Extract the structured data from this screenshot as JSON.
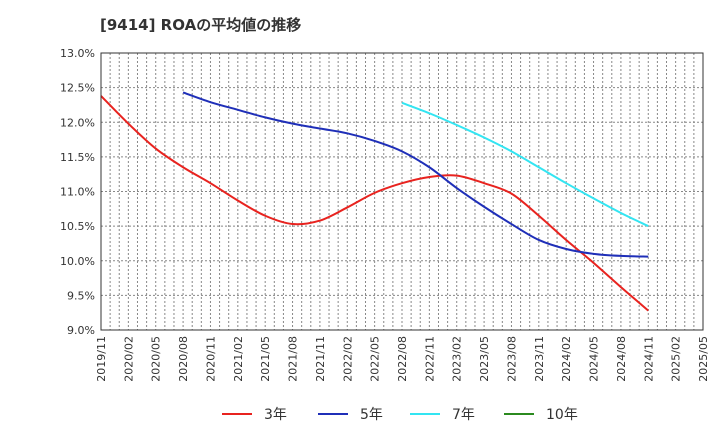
{
  "chart_data": {
    "type": "line",
    "title": "[9414]  ROAの平均値の推移",
    "xlabel": "",
    "ylabel": "",
    "ylim": [
      9.0,
      13.0
    ],
    "yticks": [
      "9.0%",
      "9.5%",
      "10.0%",
      "10.5%",
      "11.0%",
      "11.5%",
      "12.0%",
      "12.5%",
      "13.0%"
    ],
    "categories": [
      "2019/11",
      "2020/02",
      "2020/05",
      "2020/08",
      "2020/11",
      "2021/02",
      "2021/05",
      "2021/08",
      "2021/11",
      "2022/02",
      "2022/05",
      "2022/08",
      "2022/11",
      "2023/02",
      "2023/05",
      "2023/08",
      "2023/11",
      "2024/02",
      "2024/05",
      "2024/08",
      "2024/11",
      "2025/02",
      "2025/05"
    ],
    "grid": true,
    "legend_position": "bottom",
    "series": [
      {
        "name": "3年",
        "color": "#e8231f",
        "values": [
          12.38,
          11.98,
          11.62,
          11.35,
          11.12,
          10.87,
          10.65,
          10.53,
          10.58,
          10.77,
          10.98,
          11.12,
          11.21,
          11.23,
          11.12,
          10.97,
          10.65,
          10.3,
          9.97,
          9.62,
          9.28,
          null,
          null
        ]
      },
      {
        "name": "5年",
        "color": "#1f2fb8",
        "values": [
          null,
          null,
          null,
          12.43,
          12.29,
          12.18,
          12.07,
          11.98,
          11.91,
          11.84,
          11.73,
          11.58,
          11.35,
          11.05,
          10.78,
          10.53,
          10.3,
          10.17,
          10.1,
          10.07,
          10.06,
          null,
          null
        ]
      },
      {
        "name": "7年",
        "color": "#33e5f2",
        "values": [
          null,
          null,
          null,
          null,
          null,
          null,
          null,
          null,
          null,
          null,
          null,
          12.28,
          12.13,
          11.96,
          11.78,
          11.58,
          11.35,
          11.12,
          10.9,
          10.69,
          10.5,
          null,
          null
        ]
      },
      {
        "name": "10年",
        "color": "#2b8a1f",
        "values": [
          null,
          null,
          null,
          null,
          null,
          null,
          null,
          null,
          null,
          null,
          null,
          null,
          null,
          null,
          null,
          null,
          null,
          null,
          null,
          null,
          null,
          null,
          null
        ]
      }
    ]
  }
}
